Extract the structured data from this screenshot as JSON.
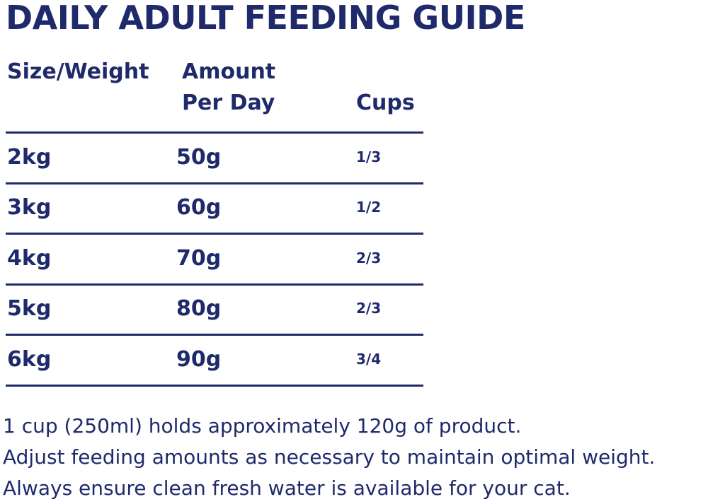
{
  "title": "DAILY ADULT FEEDING GUIDE",
  "table": {
    "headers": [
      "Size/Weight",
      "Amount Per Day",
      "Cups"
    ],
    "rows": [
      [
        "2kg",
        "50g",
        "1/3"
      ],
      [
        "3kg",
        "60g",
        "1/2"
      ],
      [
        "4kg",
        "70g",
        "2/3"
      ],
      [
        "5kg",
        "80g",
        "2/3"
      ],
      [
        "6kg",
        "90g",
        "3/4"
      ]
    ]
  },
  "notes": [
    "1 cup (250ml) holds approximately 120g of product.",
    "Adjust feeding amounts as necessary to maintain optimal weight.",
    "Always ensure clean fresh water is available for your cat."
  ]
}
